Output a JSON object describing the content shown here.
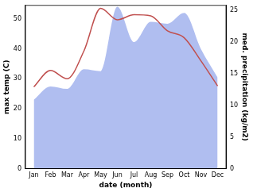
{
  "chart_data": {
    "type": "line",
    "x_label": "date (month)",
    "y_label": "max temp (C)",
    "y2_label": "med. precipitation (kg/m2)",
    "categories": [
      "Jan",
      "Feb",
      "Mar",
      "Apr",
      "May",
      "Jun",
      "Jul",
      "Aug",
      "Sep",
      "Oct",
      "Nov",
      "Dec"
    ],
    "series": [
      {
        "name": "med. precipitation (kg/m2)",
        "type": "area",
        "axis": "y2",
        "color": "#b0bef0",
        "values": [
          10.9,
          13.0,
          12.6,
          15.7,
          15.4,
          25.6,
          20.0,
          23.2,
          22.9,
          24.6,
          18.9,
          14.4
        ]
      },
      {
        "name": "max temp (C)",
        "type": "line",
        "color": "#c0504f",
        "values": [
          27.3,
          32.8,
          30.0,
          39.3,
          53.5,
          49.7,
          51.4,
          51.0,
          46.0,
          43.7,
          36.0,
          27.6
        ]
      }
    ],
    "ylim": [
      0,
      54.5
    ],
    "yticks": [
      0,
      10,
      20,
      30,
      40,
      50
    ],
    "y2lim": [
      0,
      25.8
    ],
    "y2ticks": [
      0,
      5,
      10,
      15,
      20,
      25
    ],
    "grid": false
  }
}
